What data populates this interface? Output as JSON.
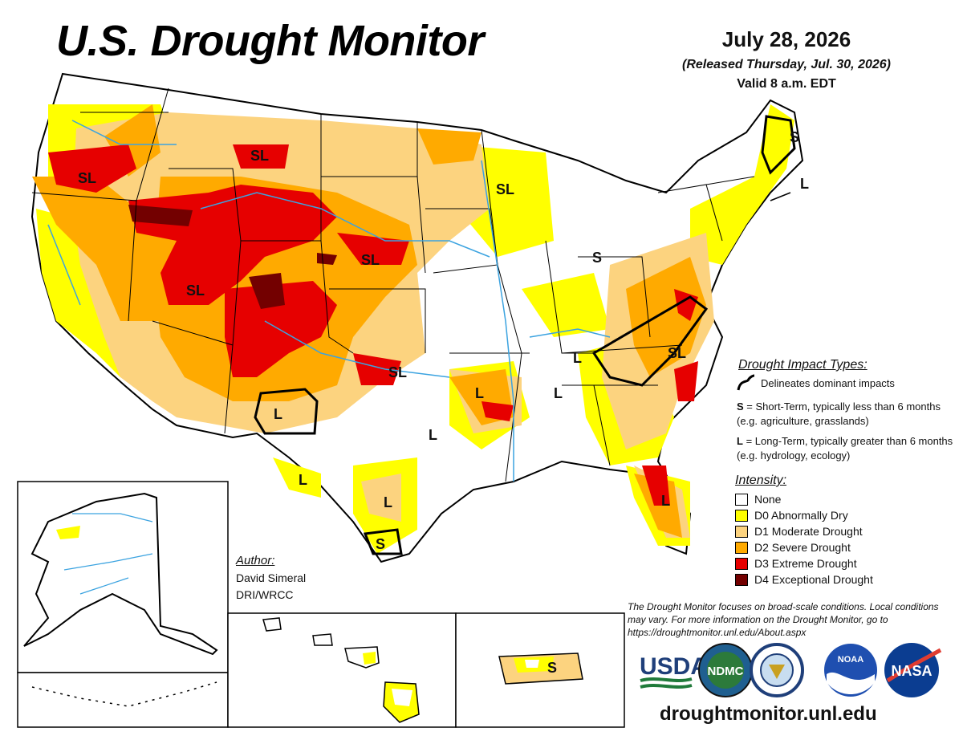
{
  "header": {
    "title": "U.S. Drought Monitor",
    "date": "July 28, 2026",
    "released": "(Released Thursday, Jul. 30, 2026)",
    "valid": "Valid 8 a.m. EDT"
  },
  "impact_types": {
    "title": "Drought Impact Types:",
    "line_label": "Delineates dominant impacts",
    "s_key": "S",
    "s_text": " = Short-Term, typically less than 6 months (e.g. agriculture, grasslands)",
    "l_key": "L",
    "l_text": " = Long-Term, typically greater than 6 months (e.g. hydrology, ecology)"
  },
  "intensity": {
    "title": "Intensity:",
    "items": [
      {
        "label": "None",
        "color": "#ffffff"
      },
      {
        "label": "D0 Abnormally Dry",
        "color": "#ffff00"
      },
      {
        "label": "D1 Moderate Drought",
        "color": "#fcd37f"
      },
      {
        "label": "D2 Severe Drought",
        "color": "#ffaa00"
      },
      {
        "label": "D3 Extreme Drought",
        "color": "#e60000"
      },
      {
        "label": "D4 Exceptional Drought",
        "color": "#730000"
      }
    ]
  },
  "author": {
    "title": "Author:",
    "name": "David Simeral",
    "org": "DRI/WRCC"
  },
  "disclaimer": "The Drought Monitor focuses on broad-scale conditions. Local conditions may vary. For more information on the Drought Monitor, go to https://droughtmonitor.unl.edu/About.aspx",
  "website": "droughtmonitor.unl.edu",
  "logos": {
    "usda": "USDA",
    "ndmc": "NDMC",
    "noaa": "NOAA",
    "nasa": "NASA"
  },
  "map_labels": {
    "oregon": "SL",
    "montana": "SL",
    "wisconsin": "SL",
    "utah": "SL",
    "nebraska": "SL",
    "oklahoma": "SL",
    "virginia": "SL",
    "maine": "S",
    "new_england": "L",
    "michigan": "S",
    "new_mexico": "L",
    "tennessee": "L",
    "mississippi": "L",
    "arkansas": "L",
    "east_texas": "L",
    "west_texas": "L",
    "south_texas": "L",
    "texas_coast": "S",
    "florida": "L",
    "puerto_rico": "S"
  }
}
